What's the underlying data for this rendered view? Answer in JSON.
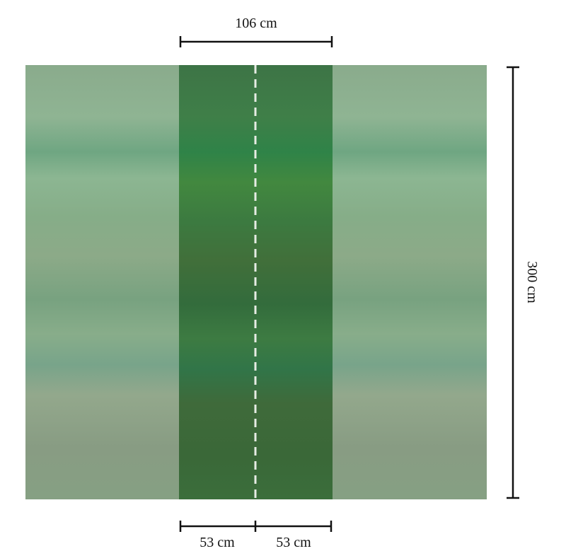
{
  "dimensions": {
    "top_width": "106 cm",
    "height": "300 cm",
    "bottom_widths": [
      "53 cm",
      "53 cm"
    ]
  }
}
